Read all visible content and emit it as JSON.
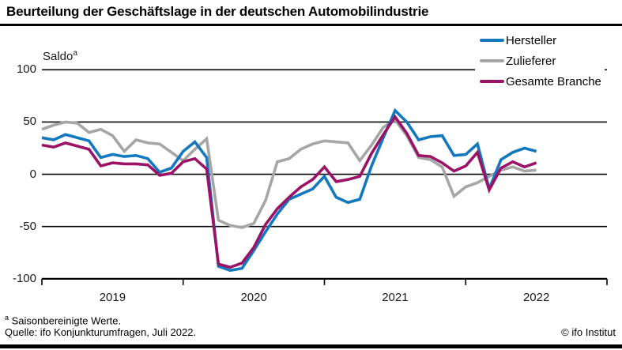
{
  "title": "Beurteilung der Geschäftslage in der deutschen Automobilindustrie",
  "y_axis_title": {
    "label": "Saldo",
    "sup": "a"
  },
  "footer": {
    "footnote_sup": "a",
    "footnote_text": " Saisonbereinigte Werte.",
    "source": "Quelle: ifo Konjunkturumfragen, Juli 2022.",
    "copyright": "© ifo Institut"
  },
  "chart_data": {
    "type": "line",
    "title": "Beurteilung der Geschäftslage in der deutschen Automobilindustrie",
    "ylabel": "Saldo",
    "ylabel_footnote_mark": "a",
    "frequency": "monthly",
    "x_start": "2019-01",
    "x_end": "2022-07",
    "x_tick_labels": [
      "2019",
      "2020",
      "2021",
      "2022"
    ],
    "y_ticks": [
      100,
      50,
      0,
      -50,
      -100
    ],
    "ylim": [
      -100,
      100
    ],
    "grid": "horizontal-black-lines",
    "legend_position": "top-right",
    "series": [
      {
        "name": "Hersteller",
        "color": "#1478be",
        "values": [
          35,
          33,
          38,
          35,
          32,
          16,
          19,
          17,
          18,
          15,
          2,
          6,
          22,
          31,
          16,
          -88,
          -92,
          -90,
          -73,
          -55,
          -38,
          -24,
          -19,
          -14,
          -2,
          -22,
          -27,
          -24,
          8,
          35,
          61,
          50,
          33,
          36,
          37,
          18,
          19,
          29,
          -14,
          14,
          21,
          25,
          22
        ]
      },
      {
        "name": "Zulieferer",
        "color": "#a6a6a6",
        "values": [
          43,
          47,
          50,
          49,
          40,
          43,
          37,
          22,
          33,
          30,
          29,
          21,
          13,
          24,
          34,
          -44,
          -49,
          -51,
          -47,
          -25,
          12,
          15,
          24,
          29,
          32,
          31,
          30,
          13,
          28,
          45,
          52,
          37,
          16,
          14,
          7,
          -21,
          -12,
          -8,
          -2,
          4,
          7,
          3,
          4
        ]
      },
      {
        "name": "Gesamte Branche",
        "color": "#9b1366",
        "values": [
          28,
          26,
          30,
          27,
          24,
          8,
          11,
          10,
          10,
          9,
          -1,
          1,
          12,
          15,
          5,
          -86,
          -89,
          -85,
          -70,
          -48,
          -33,
          -22,
          -12,
          -5,
          7,
          -7,
          -5,
          -2,
          20,
          38,
          55,
          39,
          18,
          17,
          11,
          3,
          8,
          21,
          -15,
          6,
          12,
          7,
          11
        ]
      }
    ]
  }
}
